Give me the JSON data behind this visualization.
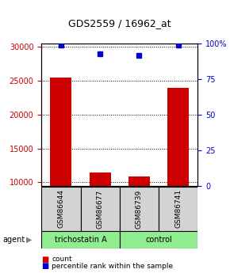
{
  "title": "GDS2559 / 16962_at",
  "samples": [
    "GSM86644",
    "GSM86677",
    "GSM86739",
    "GSM86741"
  ],
  "counts": [
    25500,
    11500,
    10800,
    24000
  ],
  "percentiles": [
    99,
    93,
    92,
    99
  ],
  "ylim_left": [
    9500,
    30500
  ],
  "ylim_right": [
    0,
    100
  ],
  "yticks_left": [
    10000,
    15000,
    20000,
    25000,
    30000
  ],
  "yticks_right": [
    0,
    25,
    50,
    75,
    100
  ],
  "yticklabels_right": [
    "0",
    "25",
    "50",
    "75",
    "100%"
  ],
  "bar_color": "#cc0000",
  "dot_color": "#0000cc",
  "grid_color": "#000000",
  "agent_groups": [
    {
      "label": "trichostatin A",
      "samples": [
        "GSM86644",
        "GSM86677"
      ],
      "color": "#90ee90"
    },
    {
      "label": "control",
      "samples": [
        "GSM86739",
        "GSM86741"
      ],
      "color": "#90ee90"
    }
  ],
  "legend_count_color": "#cc0000",
  "legend_percentile_color": "#0000cc",
  "background_color": "#ffffff",
  "plot_bg_color": "#ffffff",
  "label_box_color": "#d3d3d3",
  "bar_width": 0.55
}
